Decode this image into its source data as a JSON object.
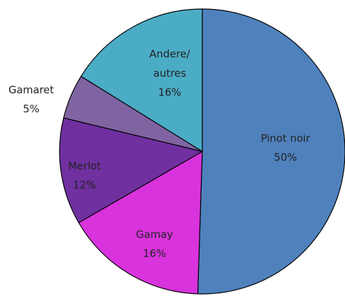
{
  "chart_data": {
    "type": "pie",
    "categories": [
      "Pinot noir",
      "Gamay",
      "Merlot",
      "Gamaret",
      "Andere/\nautres"
    ],
    "values": [
      50,
      16,
      12,
      5,
      16
    ],
    "value_labels": [
      "50%",
      "16%",
      "12%",
      "5%",
      "16%"
    ],
    "colors": [
      "#4f81bd",
      "#d833dc",
      "#7030a0",
      "#8064a2",
      "#4bacc6"
    ]
  }
}
